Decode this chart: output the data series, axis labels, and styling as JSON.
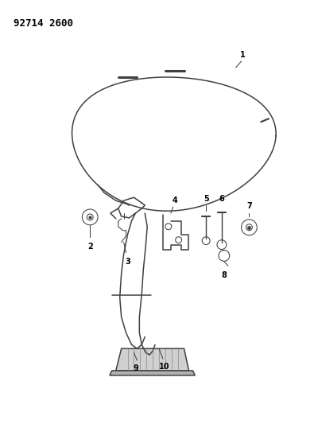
{
  "title": "92714 2600",
  "bg_color": "#ffffff",
  "line_color": "#404040",
  "fig_width": 4.0,
  "fig_height": 5.33,
  "dpi": 100,
  "label_fontsize": 7,
  "title_fontsize": 9
}
